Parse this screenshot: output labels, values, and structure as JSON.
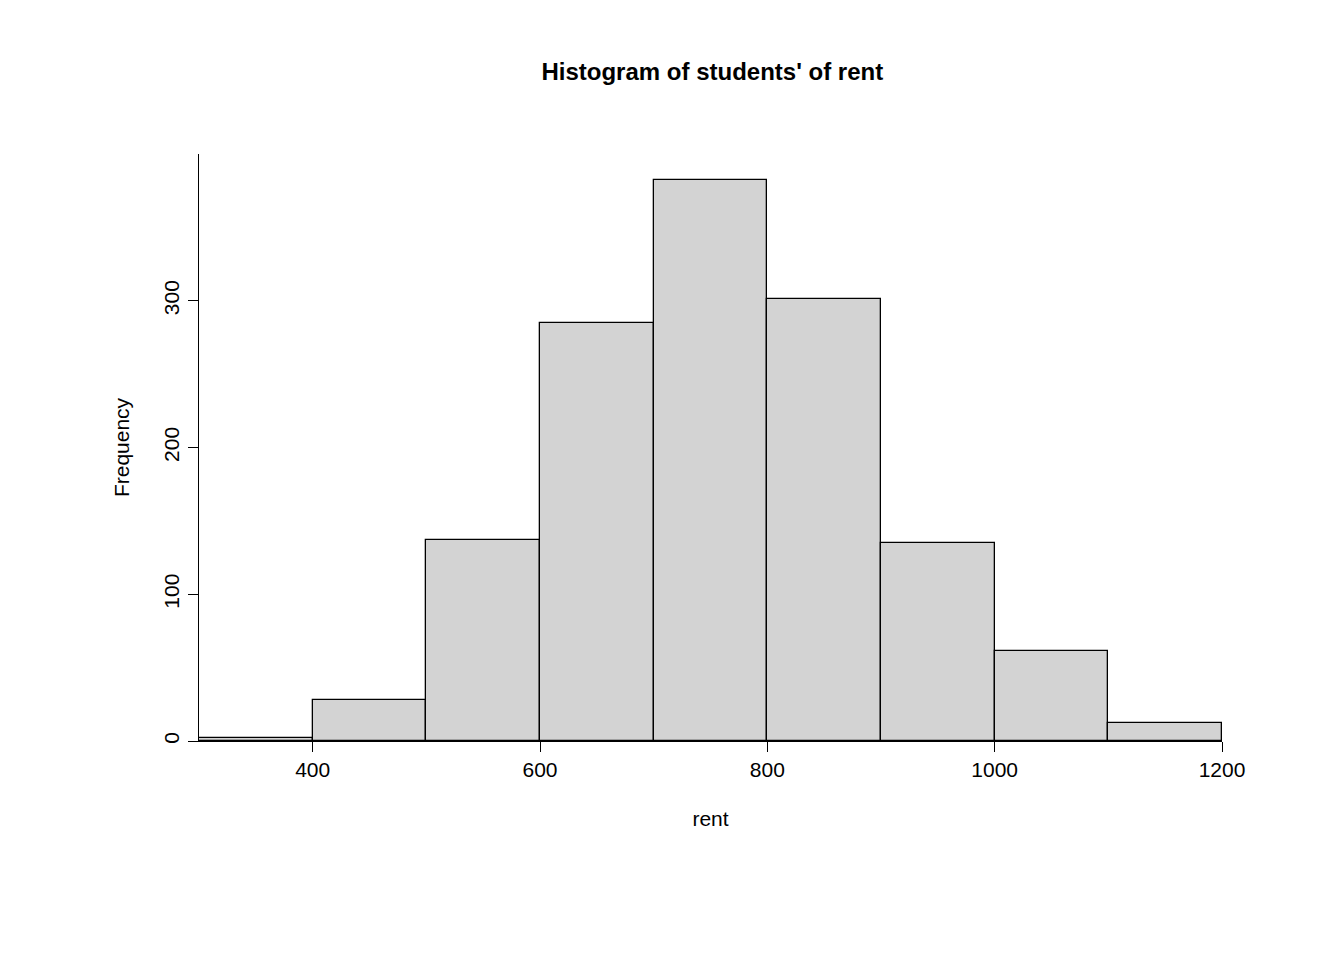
{
  "chart_data": {
    "type": "histogram",
    "title": "Histogram of students' of rent",
    "x_label": "rent",
    "y_label": "Frequency",
    "bins": [
      300,
      400,
      500,
      600,
      700,
      800,
      900,
      1000,
      1100,
      1200
    ],
    "values": [
      2,
      28,
      137,
      285,
      382,
      301,
      135,
      61,
      12
    ],
    "color": "#d3d3d3",
    "xlim": [
      300,
      1200
    ],
    "xticks": [
      400,
      600,
      800,
      1000,
      1200
    ],
    "ylim": [
      0,
      400
    ],
    "yticks": [
      0,
      100,
      200,
      300
    ],
    "grid": false
  }
}
